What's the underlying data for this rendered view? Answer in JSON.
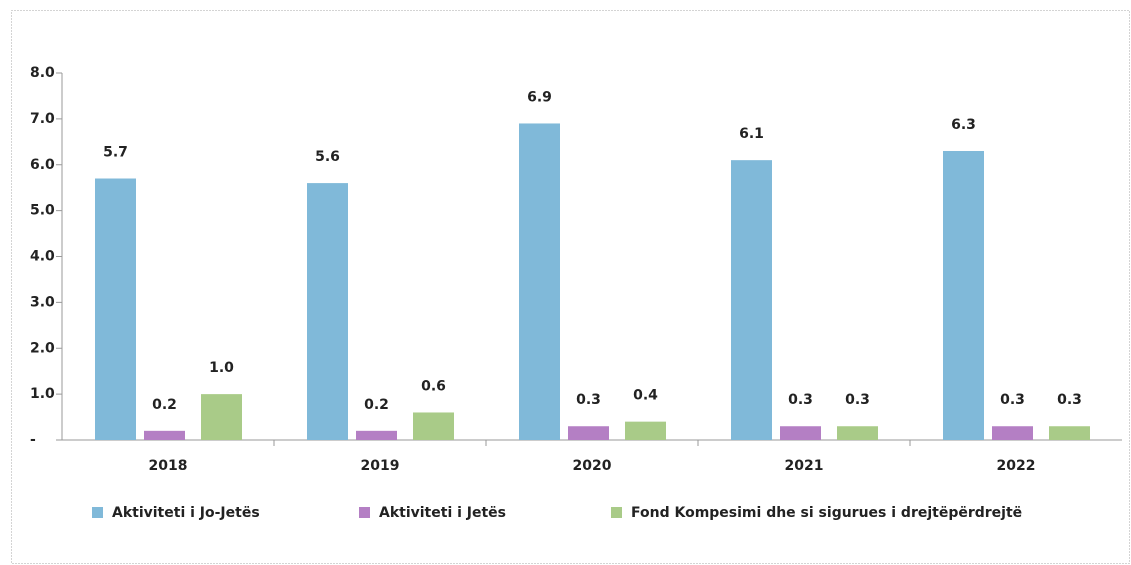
{
  "chart_data": {
    "type": "bar",
    "categories": [
      "2018",
      "2019",
      "2020",
      "2021",
      "2022"
    ],
    "series": [
      {
        "name": "Aktiviteti i Jo-Jetës",
        "color": "#80b9d9",
        "values": [
          5.7,
          5.6,
          6.9,
          6.1,
          6.3
        ],
        "value_labels": [
          "5.7",
          "5.6",
          "6.9",
          "6.1",
          "6.3"
        ]
      },
      {
        "name": "Aktiviteti i Jetës",
        "color": "#b47fc4",
        "values": [
          0.2,
          0.2,
          0.3,
          0.3,
          0.3
        ],
        "value_labels": [
          "0.2",
          "0.2",
          "0.3",
          "0.3",
          "0.3"
        ]
      },
      {
        "name": "Fond Kompesimi dhe si sigurues i drejtëpërdrejtë",
        "color": "#a9cb88",
        "values": [
          1,
          0.6,
          0.4,
          0.3,
          0.3
        ],
        "value_labels": [
          "1.0",
          "0.6",
          "0.4",
          "0.3",
          "0.3"
        ]
      }
    ],
    "ylim": [
      0,
      8
    ],
    "yticks": [
      {
        "value": 0,
        "label": "-"
      },
      {
        "value": 1,
        "label": "1.0"
      },
      {
        "value": 2,
        "label": "2.0"
      },
      {
        "value": 3,
        "label": "3.0"
      },
      {
        "value": 4,
        "label": "4.0"
      },
      {
        "value": 5,
        "label": "5.0"
      },
      {
        "value": 6,
        "label": "6.0"
      },
      {
        "value": 7,
        "label": "7.0"
      },
      {
        "value": 8,
        "label": "8.0"
      }
    ],
    "legend": "bottom"
  }
}
